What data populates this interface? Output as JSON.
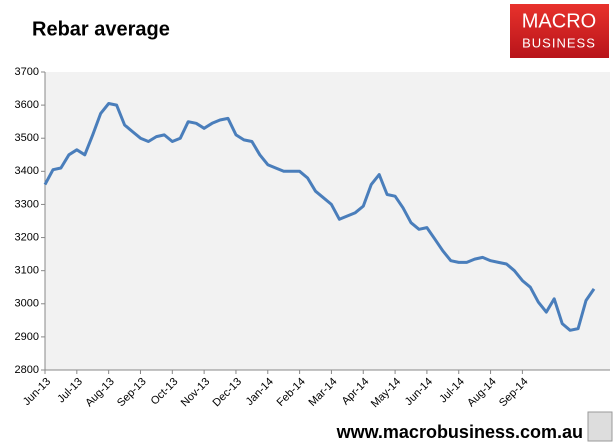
{
  "chart_data": {
    "type": "line",
    "title": "Rebar average",
    "categories": [
      "Jun-13",
      null,
      null,
      null,
      "Jul-13",
      null,
      null,
      null,
      "Aug-13",
      null,
      null,
      null,
      "Sep-13",
      null,
      null,
      null,
      "Oct-13",
      null,
      null,
      null,
      "Nov-13",
      null,
      null,
      null,
      "Dec-13",
      null,
      null,
      null,
      "Jan-14",
      null,
      null,
      null,
      "Feb-14",
      null,
      null,
      null,
      "Mar-14",
      null,
      null,
      null,
      "Apr-14",
      null,
      null,
      null,
      "May-14",
      null,
      null,
      null,
      "Jun-14",
      null,
      null,
      null,
      "Jul-14",
      null,
      null,
      null,
      "Aug-14",
      null,
      null,
      null,
      "Sep-14",
      null,
      null,
      null,
      null,
      null,
      null,
      null,
      null,
      null
    ],
    "series": [
      {
        "name": "Rebar average",
        "color": "#4a7ebb",
        "values": [
          3360,
          3405,
          3410,
          3450,
          3465,
          3450,
          3510,
          3575,
          3605,
          3600,
          3540,
          3520,
          3500,
          3490,
          3505,
          3510,
          3490,
          3500,
          3550,
          3545,
          3530,
          3545,
          3555,
          3560,
          3510,
          3495,
          3490,
          3450,
          3420,
          3410,
          3400,
          3400,
          3400,
          3380,
          3340,
          3320,
          3300,
          3255,
          3265,
          3275,
          3295,
          3360,
          3390,
          3330,
          3325,
          3290,
          3245,
          3225,
          3230,
          3195,
          3160,
          3130,
          3125,
          3125,
          3135,
          3140,
          3130,
          3125,
          3120,
          3100,
          3070,
          3050,
          3005,
          2975,
          3015,
          2940,
          2920,
          2925,
          3010,
          3045
        ]
      }
    ],
    "ylim": [
      2800,
      3700
    ],
    "yticks": [
      2800,
      2900,
      3000,
      3100,
      3200,
      3300,
      3400,
      3500,
      3600,
      3700
    ],
    "grid": false
  },
  "brand": {
    "line1": "MACRO",
    "line2": "BUSINESS"
  },
  "footer": "www.macrobusiness.com.au"
}
